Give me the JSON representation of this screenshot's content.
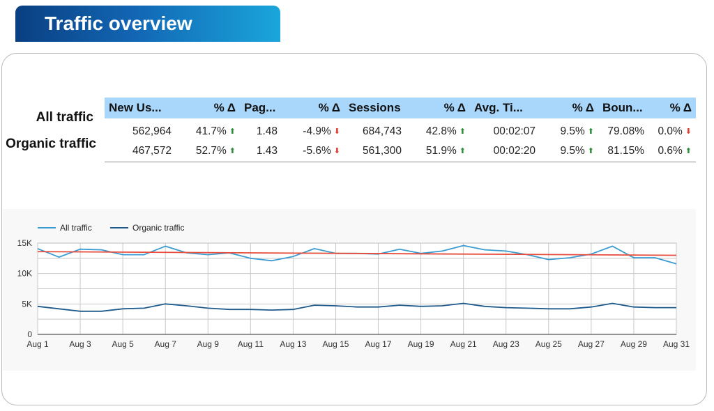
{
  "header": {
    "title": "Traffic overview"
  },
  "table": {
    "row_labels": [
      "All traffic",
      "Organic traffic"
    ],
    "columns": [
      "New Us...",
      "% Δ",
      "Pag...",
      "% Δ",
      "Sessions",
      "% Δ",
      "Avg. Ti...",
      "% Δ",
      "Boun...",
      "% Δ"
    ],
    "rows": [
      {
        "new_users": "562,964",
        "new_users_delta": "41.7%",
        "new_users_dir": "up",
        "pages": "1.48",
        "pages_delta": "-4.9%",
        "pages_dir": "down",
        "sessions": "684,743",
        "sessions_delta": "42.8%",
        "sessions_dir": "up",
        "avg_time": "00:02:07",
        "avg_time_delta": "9.5%",
        "avg_time_dir": "up",
        "bounce": "79.08%",
        "bounce_delta": "0.0%",
        "bounce_dir": "down"
      },
      {
        "new_users": "467,572",
        "new_users_delta": "52.7%",
        "new_users_dir": "up",
        "pages": "1.43",
        "pages_delta": "-5.6%",
        "pages_dir": "down",
        "sessions": "561,300",
        "sessions_delta": "51.9%",
        "sessions_dir": "up",
        "avg_time": "00:02:20",
        "avg_time_delta": "9.5%",
        "avg_time_dir": "up",
        "bounce": "81.15%",
        "bounce_delta": "0.6%",
        "bounce_dir": "up"
      }
    ]
  },
  "chart_data": {
    "type": "line",
    "title": "",
    "xlabel": "",
    "ylabel": "",
    "x": [
      "Aug 1",
      "Aug 2",
      "Aug 3",
      "Aug 4",
      "Aug 5",
      "Aug 6",
      "Aug 7",
      "Aug 8",
      "Aug 9",
      "Aug 10",
      "Aug 11",
      "Aug 12",
      "Aug 13",
      "Aug 14",
      "Aug 15",
      "Aug 16",
      "Aug 17",
      "Aug 18",
      "Aug 19",
      "Aug 20",
      "Aug 21",
      "Aug 22",
      "Aug 23",
      "Aug 24",
      "Aug 25",
      "Aug 26",
      "Aug 27",
      "Aug 28",
      "Aug 29",
      "Aug 30",
      "Aug 31"
    ],
    "x_tick_labels": [
      "Aug 1",
      "Aug 3",
      "Aug 5",
      "Aug 7",
      "Aug 9",
      "Aug 11",
      "Aug 13",
      "Aug 15",
      "Aug 17",
      "Aug 19",
      "Aug 21",
      "Aug 23",
      "Aug 25",
      "Aug 27",
      "Aug 29",
      "Aug 31"
    ],
    "y_tick_labels": [
      "0",
      "5K",
      "10K",
      "15K"
    ],
    "ylim": [
      0,
      15000
    ],
    "grid": true,
    "legend": "top-left",
    "series": [
      {
        "name": "All traffic",
        "color": "#3a9bd0",
        "values": [
          14100,
          12700,
          14000,
          13900,
          13100,
          13100,
          14500,
          13400,
          13100,
          13400,
          12500,
          12100,
          12800,
          14100,
          13300,
          13300,
          13200,
          14000,
          13300,
          13700,
          14600,
          13900,
          13700,
          13100,
          12300,
          12600,
          13200,
          14500,
          12600,
          12600,
          11600
        ]
      },
      {
        "name": "Organic traffic",
        "color": "#1f5a8c",
        "values": [
          4600,
          4200,
          3800,
          3800,
          4200,
          4300,
          5000,
          4700,
          4300,
          4100,
          4100,
          4000,
          4100,
          4800,
          4700,
          4500,
          4500,
          4800,
          4600,
          4700,
          5100,
          4600,
          4400,
          4300,
          4200,
          4200,
          4500,
          5100,
          4500,
          4400,
          4400
        ]
      }
    ],
    "trendline": {
      "color": "#e74c3c",
      "start": 13600,
      "end": 13000
    }
  }
}
